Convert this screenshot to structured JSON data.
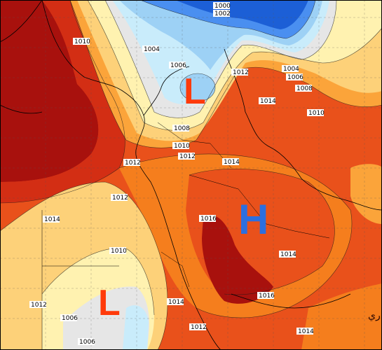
{
  "systems": [
    {
      "id": "low-north",
      "letter": "L",
      "kind": "low"
    },
    {
      "id": "high-center",
      "letter": "H",
      "kind": "high"
    },
    {
      "id": "low-south",
      "letter": "L",
      "kind": "low"
    }
  ],
  "isobar_labels": [
    {
      "id": "a",
      "text": "1000"
    },
    {
      "id": "b",
      "text": "1002"
    },
    {
      "id": "c",
      "text": "1010"
    },
    {
      "id": "d",
      "text": "1004"
    },
    {
      "id": "e",
      "text": "1006"
    },
    {
      "id": "f",
      "text": "1012"
    },
    {
      "id": "g",
      "text": "1004"
    },
    {
      "id": "h",
      "text": "1006"
    },
    {
      "id": "i",
      "text": "1008"
    },
    {
      "id": "j",
      "text": "1014"
    },
    {
      "id": "k",
      "text": "1010"
    },
    {
      "id": "l",
      "text": "1008"
    },
    {
      "id": "m",
      "text": "1010"
    },
    {
      "id": "n",
      "text": "1012"
    },
    {
      "id": "o",
      "text": "1012"
    },
    {
      "id": "p",
      "text": "1014"
    },
    {
      "id": "q",
      "text": "1012"
    },
    {
      "id": "r",
      "text": "1014"
    },
    {
      "id": "s",
      "text": "1016"
    },
    {
      "id": "t",
      "text": "1010"
    },
    {
      "id": "u",
      "text": "1014"
    },
    {
      "id": "v",
      "text": "1012"
    },
    {
      "id": "w",
      "text": "1016"
    },
    {
      "id": "x",
      "text": "1014"
    },
    {
      "id": "y",
      "text": "1006"
    },
    {
      "id": "z",
      "text": "1012"
    },
    {
      "id": "aa",
      "text": "1014"
    },
    {
      "id": "ab",
      "text": "1006"
    }
  ],
  "credit": "متابع جوي-البراري",
  "colors": {
    "deep_blue": "#1c5fd6",
    "blue": "#4a8ff0",
    "light_blue": "#9dd1f5",
    "pale_blue": "#c9ecfb",
    "gray": "#e6e6e6",
    "pale_yellow": "#fff2b0",
    "light_orange": "#fdd179",
    "orange": "#fba43a",
    "orange_red": "#f57e1d",
    "red_orange": "#e9511b",
    "red": "#d02a14",
    "dark_red": "#a8110d"
  }
}
